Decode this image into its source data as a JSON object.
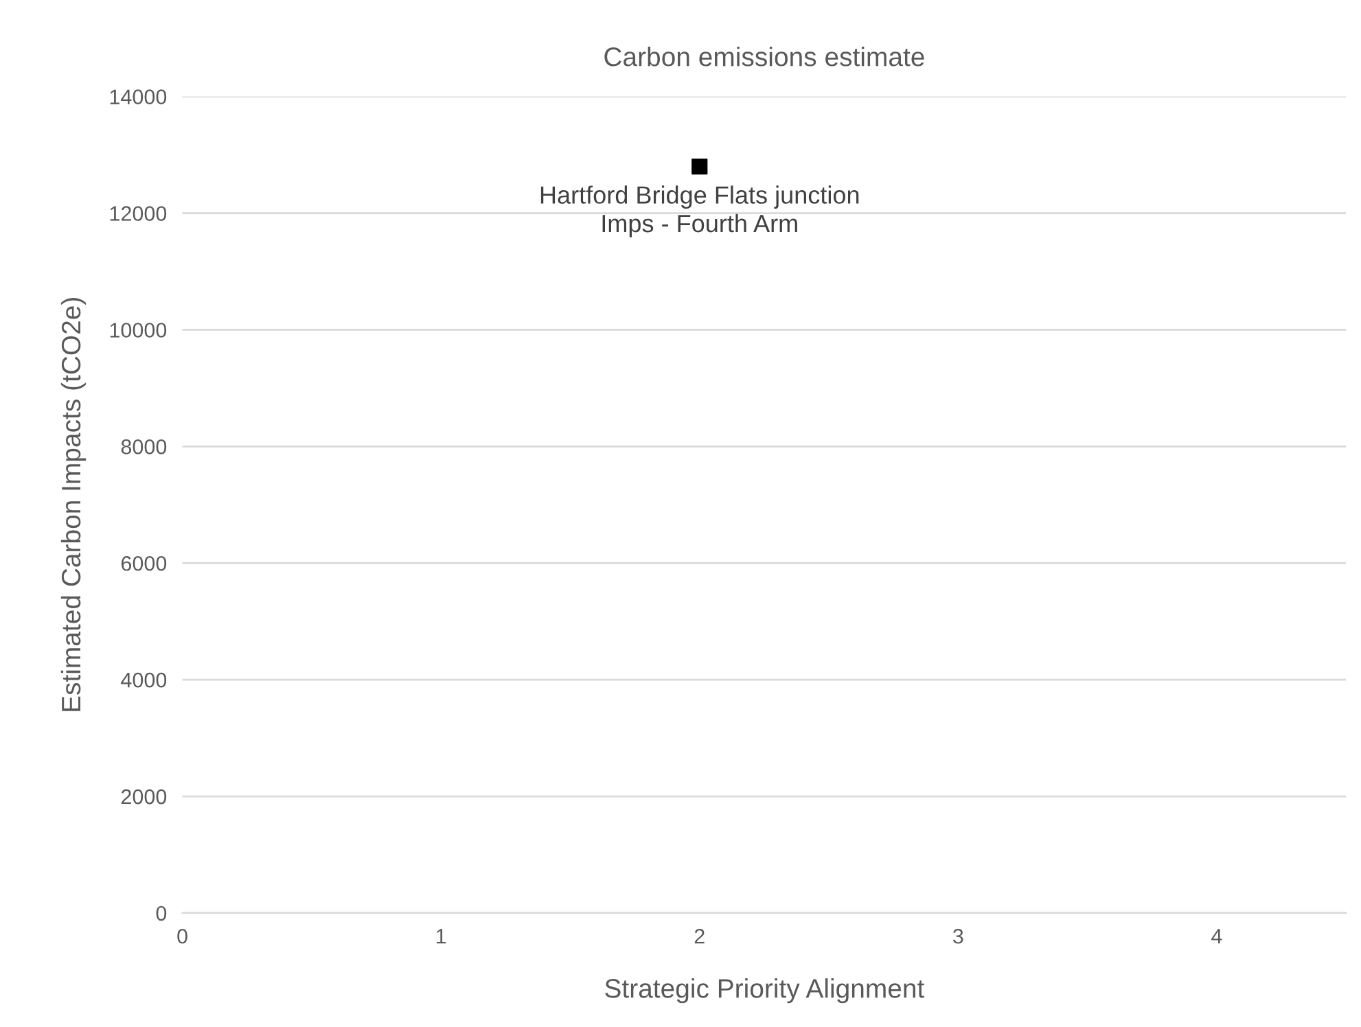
{
  "chart_data": {
    "type": "scatter",
    "title": "Carbon emissions estimate",
    "xlabel": "Strategic Priority Alignment",
    "ylabel": "Estimated Carbon Impacts (tCO2e)",
    "x": [
      2
    ],
    "values": [
      12800
    ],
    "color": "#000000",
    "marker": "square",
    "xlim": [
      0,
      4.5
    ],
    "xticks": [
      0,
      1,
      2,
      3,
      4
    ],
    "ylim": [
      0,
      14000
    ],
    "yticks": [
      0,
      2000,
      4000,
      6000,
      8000,
      10000,
      12000,
      14000
    ],
    "grid": "y",
    "legend": false,
    "annotations": [
      {
        "text": "Hartford Bridge Flats junction\nImps - Fourth Arm",
        "x": 2,
        "y": 12800
      }
    ]
  }
}
